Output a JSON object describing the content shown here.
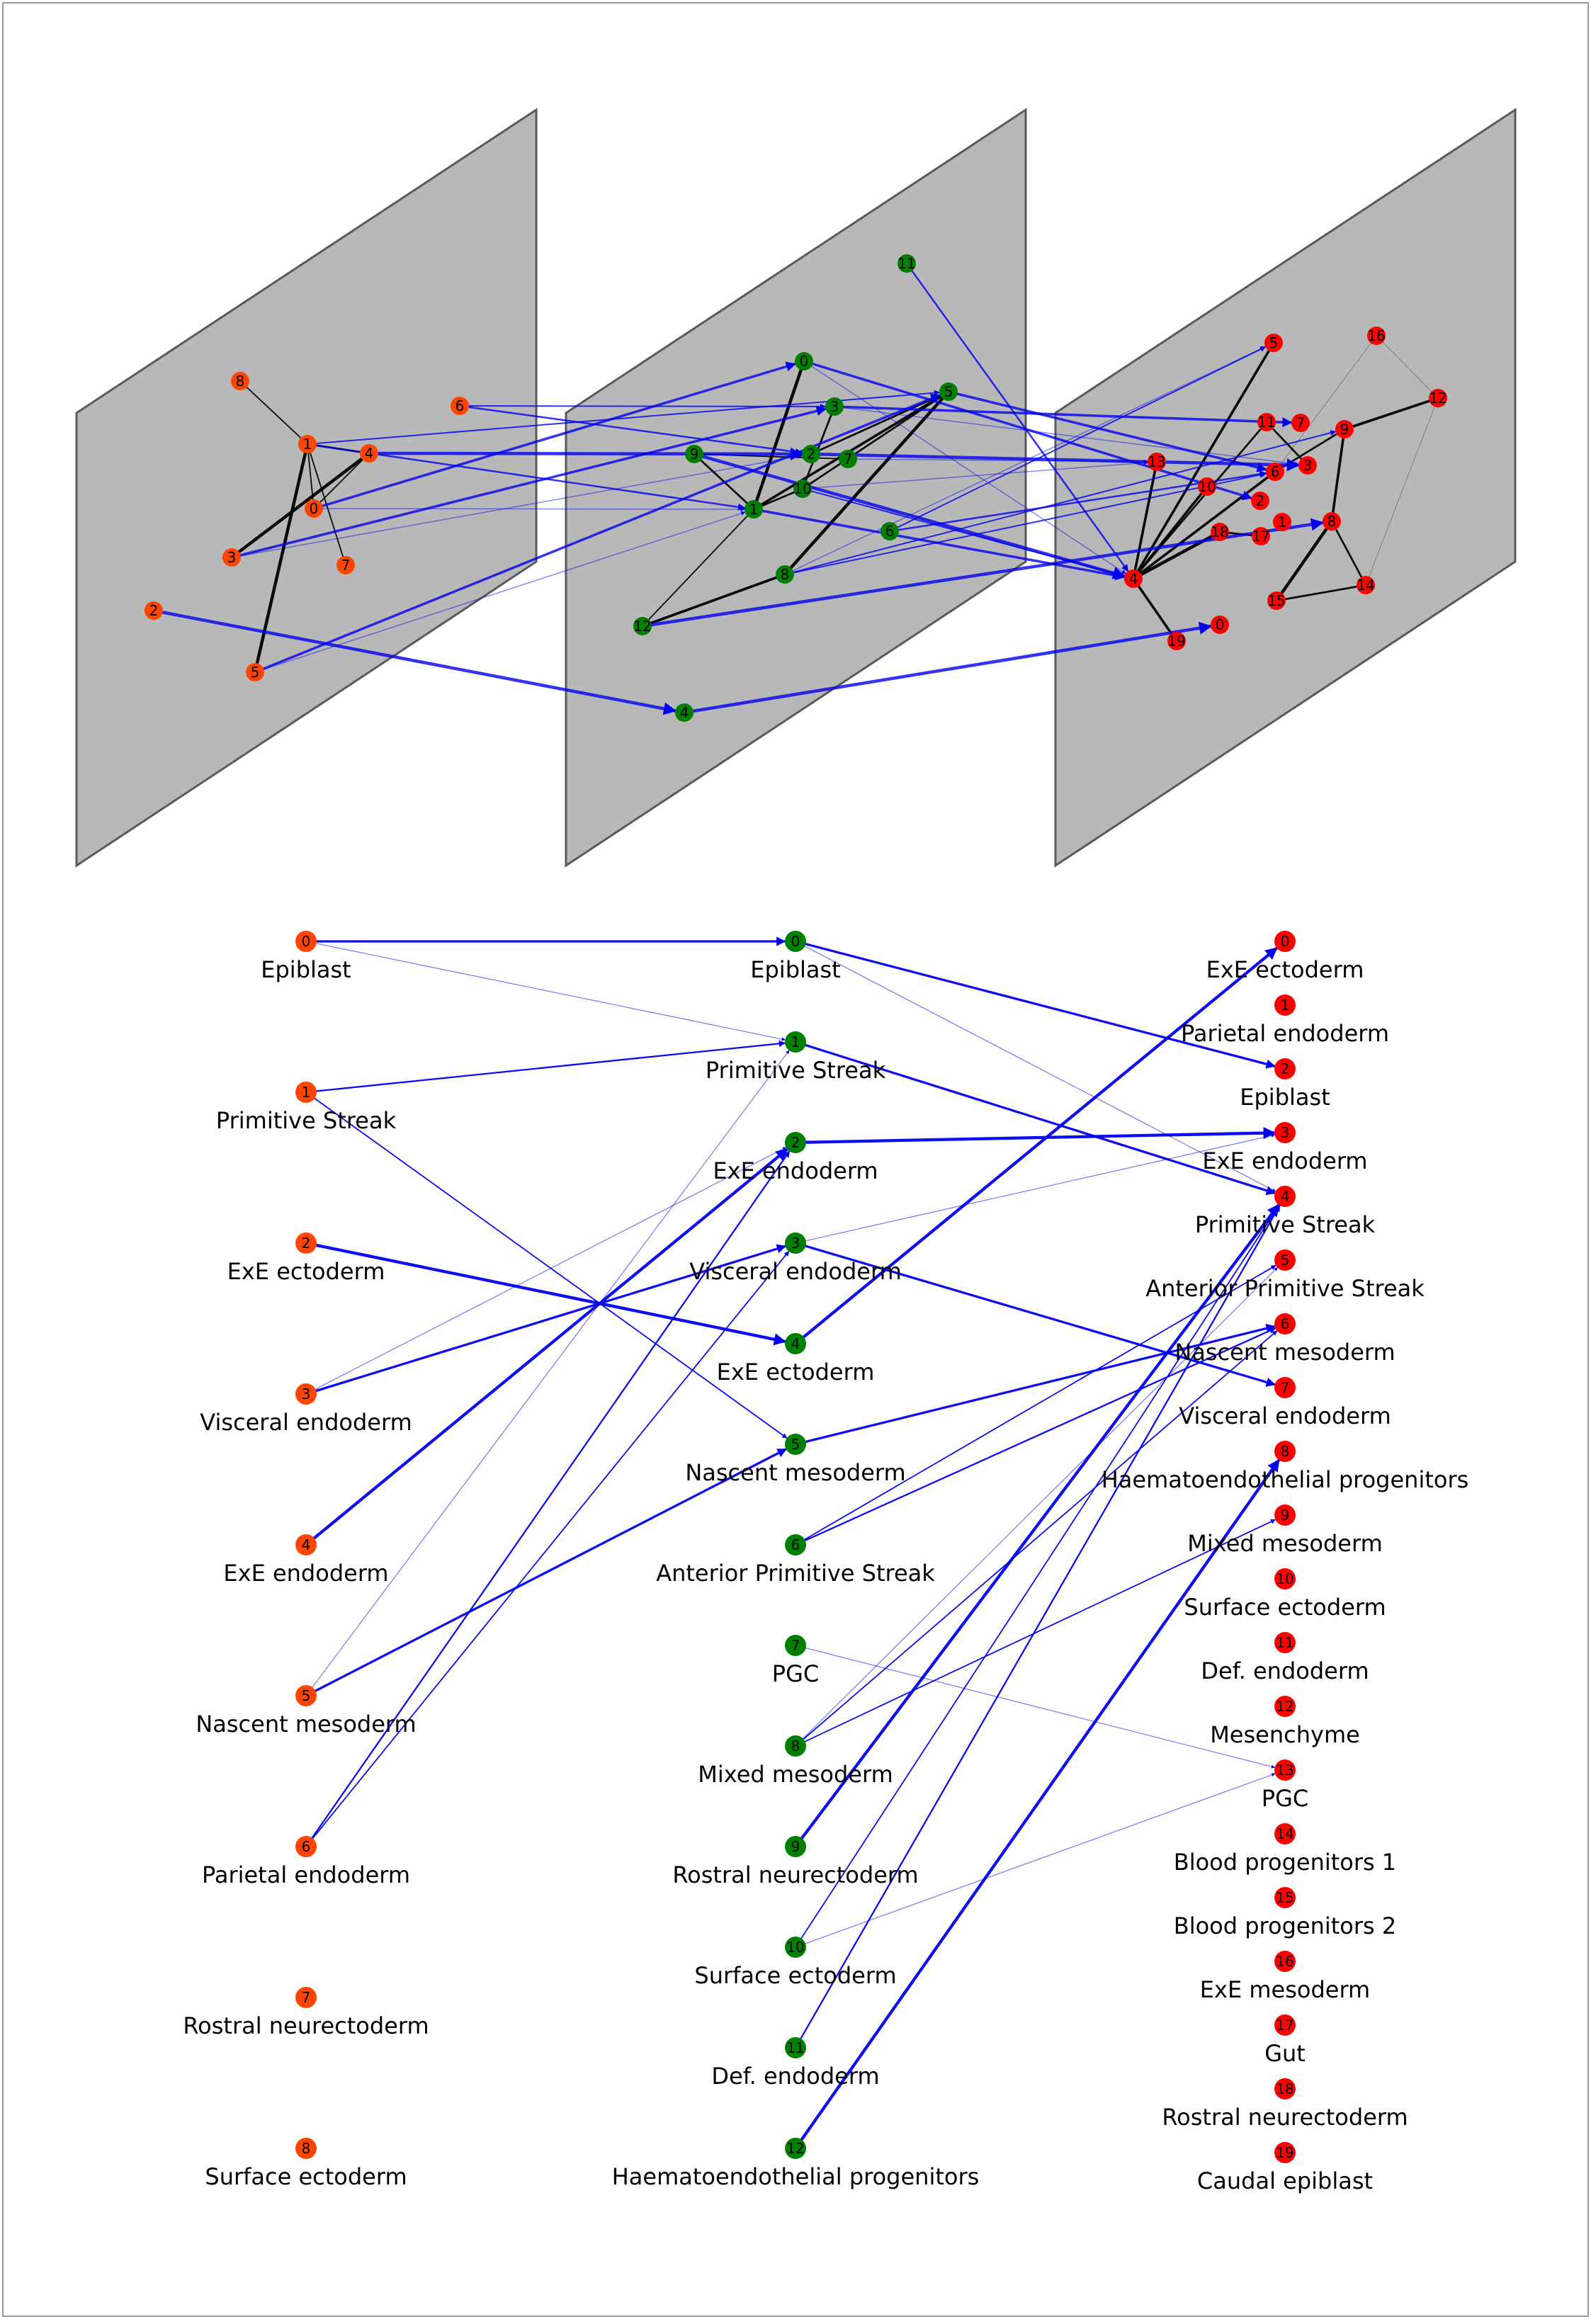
{
  "colors": {
    "stage1": "#ff4500",
    "stage2": "#008000",
    "stage3": "#ff0000",
    "plane": "#b8b8b8",
    "plane_edge": "#5a5a5a",
    "edge_between": "#0000ee",
    "edge_within": "#000000",
    "frame": "#999999"
  },
  "stages": [
    {
      "id": "s1",
      "nodes": [
        {
          "id": "0",
          "name": "Epiblast"
        },
        {
          "id": "1",
          "name": "Primitive Streak"
        },
        {
          "id": "2",
          "name": "ExE ectoderm"
        },
        {
          "id": "3",
          "name": "Visceral endoderm"
        },
        {
          "id": "4",
          "name": "ExE endoderm"
        },
        {
          "id": "5",
          "name": "Nascent mesoderm"
        },
        {
          "id": "6",
          "name": "Parietal endoderm"
        },
        {
          "id": "7",
          "name": "Rostral neurectoderm"
        },
        {
          "id": "8",
          "name": "Surface ectoderm"
        }
      ]
    },
    {
      "id": "s2",
      "nodes": [
        {
          "id": "0",
          "name": "Epiblast"
        },
        {
          "id": "1",
          "name": "Primitive Streak"
        },
        {
          "id": "2",
          "name": "ExE endoderm"
        },
        {
          "id": "3",
          "name": "Visceral endoderm"
        },
        {
          "id": "4",
          "name": "ExE ectoderm"
        },
        {
          "id": "5",
          "name": "Nascent mesoderm"
        },
        {
          "id": "6",
          "name": "Anterior Primitive Streak"
        },
        {
          "id": "7",
          "name": "PGC"
        },
        {
          "id": "8",
          "name": "Mixed mesoderm"
        },
        {
          "id": "9",
          "name": "Rostral neurectoderm"
        },
        {
          "id": "10",
          "name": "Surface ectoderm"
        },
        {
          "id": "11",
          "name": "Def. endoderm"
        },
        {
          "id": "12",
          "name": "Haematoendothelial progenitors"
        }
      ]
    },
    {
      "id": "s3",
      "nodes": [
        {
          "id": "0",
          "name": "ExE ectoderm"
        },
        {
          "id": "1",
          "name": "Parietal endoderm"
        },
        {
          "id": "2",
          "name": "Epiblast"
        },
        {
          "id": "3",
          "name": "ExE endoderm"
        },
        {
          "id": "4",
          "name": "Primitive Streak"
        },
        {
          "id": "5",
          "name": "Anterior Primitive Streak"
        },
        {
          "id": "6",
          "name": "Nascent mesoderm"
        },
        {
          "id": "7",
          "name": "Visceral endoderm"
        },
        {
          "id": "8",
          "name": "Haematoendothelial progenitors"
        },
        {
          "id": "9",
          "name": "Mixed mesoderm"
        },
        {
          "id": "10",
          "name": "Surface ectoderm"
        },
        {
          "id": "11",
          "name": "Def. endoderm"
        },
        {
          "id": "12",
          "name": "Mesenchyme"
        },
        {
          "id": "13",
          "name": "PGC"
        },
        {
          "id": "14",
          "name": "Blood progenitors 1"
        },
        {
          "id": "15",
          "name": "Blood progenitors 2"
        },
        {
          "id": "16",
          "name": "ExE mesoderm"
        },
        {
          "id": "17",
          "name": "Gut"
        },
        {
          "id": "18",
          "name": "Rostral neurectoderm"
        },
        {
          "id": "19",
          "name": "Caudal epiblast"
        }
      ]
    }
  ],
  "transitions": [
    {
      "from": "s1:0",
      "to": "s2:0",
      "weight": 3
    },
    {
      "from": "s1:0",
      "to": "s2:1",
      "weight": 1
    },
    {
      "from": "s1:1",
      "to": "s2:1",
      "weight": 2
    },
    {
      "from": "s1:1",
      "to": "s2:5",
      "weight": 1.5
    },
    {
      "from": "s1:2",
      "to": "s2:4",
      "weight": 4
    },
    {
      "from": "s1:3",
      "to": "s2:2",
      "weight": 1
    },
    {
      "from": "s1:3",
      "to": "s2:3",
      "weight": 3
    },
    {
      "from": "s1:4",
      "to": "s2:2",
      "weight": 4
    },
    {
      "from": "s1:5",
      "to": "s2:1",
      "weight": 1
    },
    {
      "from": "s1:5",
      "to": "s2:5",
      "weight": 3
    },
    {
      "from": "s1:6",
      "to": "s2:2",
      "weight": 2
    },
    {
      "from": "s1:6",
      "to": "s2:3",
      "weight": 1.5
    },
    {
      "from": "s2:0",
      "to": "s3:2",
      "weight": 3
    },
    {
      "from": "s2:0",
      "to": "s3:4",
      "weight": 1
    },
    {
      "from": "s2:1",
      "to": "s3:4",
      "weight": 3
    },
    {
      "from": "s2:2",
      "to": "s3:3",
      "weight": 4
    },
    {
      "from": "s2:3",
      "to": "s3:3",
      "weight": 1
    },
    {
      "from": "s2:3",
      "to": "s3:7",
      "weight": 3
    },
    {
      "from": "s2:4",
      "to": "s3:0",
      "weight": 4
    },
    {
      "from": "s2:5",
      "to": "s3:6",
      "weight": 3
    },
    {
      "from": "s2:6",
      "to": "s3:5",
      "weight": 1.5
    },
    {
      "from": "s2:6",
      "to": "s3:6",
      "weight": 2
    },
    {
      "from": "s2:7",
      "to": "s3:13",
      "weight": 1
    },
    {
      "from": "s2:8",
      "to": "s3:5",
      "weight": 1
    },
    {
      "from": "s2:8",
      "to": "s3:6",
      "weight": 1.5
    },
    {
      "from": "s2:8",
      "to": "s3:9",
      "weight": 1.5
    },
    {
      "from": "s2:9",
      "to": "s3:4",
      "weight": 4
    },
    {
      "from": "s2:10",
      "to": "s3:4",
      "weight": 1.5
    },
    {
      "from": "s2:10",
      "to": "s3:13",
      "weight": 1
    },
    {
      "from": "s2:11",
      "to": "s3:4",
      "weight": 2
    },
    {
      "from": "s2:12",
      "to": "s3:8",
      "weight": 4
    }
  ],
  "within_edges": [
    {
      "stage": "s1",
      "a": "1",
      "b": "8",
      "weight": 2
    },
    {
      "stage": "s1",
      "a": "1",
      "b": "4",
      "weight": 3
    },
    {
      "stage": "s1",
      "a": "1",
      "b": "0",
      "weight": 2
    },
    {
      "stage": "s1",
      "a": "1",
      "b": "7",
      "weight": 2
    },
    {
      "stage": "s1",
      "a": "1",
      "b": "5",
      "weight": 5
    },
    {
      "stage": "s1",
      "a": "4",
      "b": "3",
      "weight": 5
    },
    {
      "stage": "s1",
      "a": "0",
      "b": "4",
      "weight": 2
    },
    {
      "stage": "s2",
      "a": "0",
      "b": "1",
      "weight": 5
    },
    {
      "stage": "s2",
      "a": "1",
      "b": "9",
      "weight": 3
    },
    {
      "stage": "s2",
      "a": "1",
      "b": "12",
      "weight": 2
    },
    {
      "stage": "s2",
      "a": "1",
      "b": "5",
      "weight": 4
    },
    {
      "stage": "s2",
      "a": "1",
      "b": "10",
      "weight": 3
    },
    {
      "stage": "s2",
      "a": "8",
      "b": "5",
      "weight": 5
    },
    {
      "stage": "s2",
      "a": "12",
      "b": "8",
      "weight": 4
    },
    {
      "stage": "s2",
      "a": "10",
      "b": "3",
      "weight": 3
    },
    {
      "stage": "s2",
      "a": "9",
      "b": "7",
      "weight": 2
    },
    {
      "stage": "s2",
      "a": "2",
      "b": "5",
      "weight": 3
    },
    {
      "stage": "s2",
      "a": "10",
      "b": "5",
      "weight": 3
    },
    {
      "stage": "s3",
      "a": "4",
      "b": "13",
      "weight": 4
    },
    {
      "stage": "s3",
      "a": "4",
      "b": "5",
      "weight": 4
    },
    {
      "stage": "s3",
      "a": "4",
      "b": "10",
      "weight": 4
    },
    {
      "stage": "s3",
      "a": "4",
      "b": "6",
      "weight": 4
    },
    {
      "stage": "s3",
      "a": "4",
      "b": "18",
      "weight": 5
    },
    {
      "stage": "s3",
      "a": "4",
      "b": "11",
      "weight": 3
    },
    {
      "stage": "s3",
      "a": "4",
      "b": "19",
      "weight": 4
    },
    {
      "stage": "s3",
      "a": "6",
      "b": "9",
      "weight": 3
    },
    {
      "stage": "s3",
      "a": "9",
      "b": "12",
      "weight": 4
    },
    {
      "stage": "s3",
      "a": "9",
      "b": "8",
      "weight": 4
    },
    {
      "stage": "s3",
      "a": "8",
      "b": "15",
      "weight": 5
    },
    {
      "stage": "s3",
      "a": "8",
      "b": "14",
      "weight": 3
    },
    {
      "stage": "s3",
      "a": "14",
      "b": "15",
      "weight": 3
    },
    {
      "stage": "s3",
      "a": "11",
      "b": "3",
      "weight": 3
    },
    {
      "stage": "s3",
      "a": "18",
      "b": "17",
      "weight": 3
    },
    {
      "stage": "s3",
      "a": "16",
      "b": "6",
      "weight": 1
    },
    {
      "stage": "s3",
      "a": "16",
      "b": "12",
      "weight": 1
    },
    {
      "stage": "s3",
      "a": "12",
      "b": "14",
      "weight": 1
    }
  ]
}
